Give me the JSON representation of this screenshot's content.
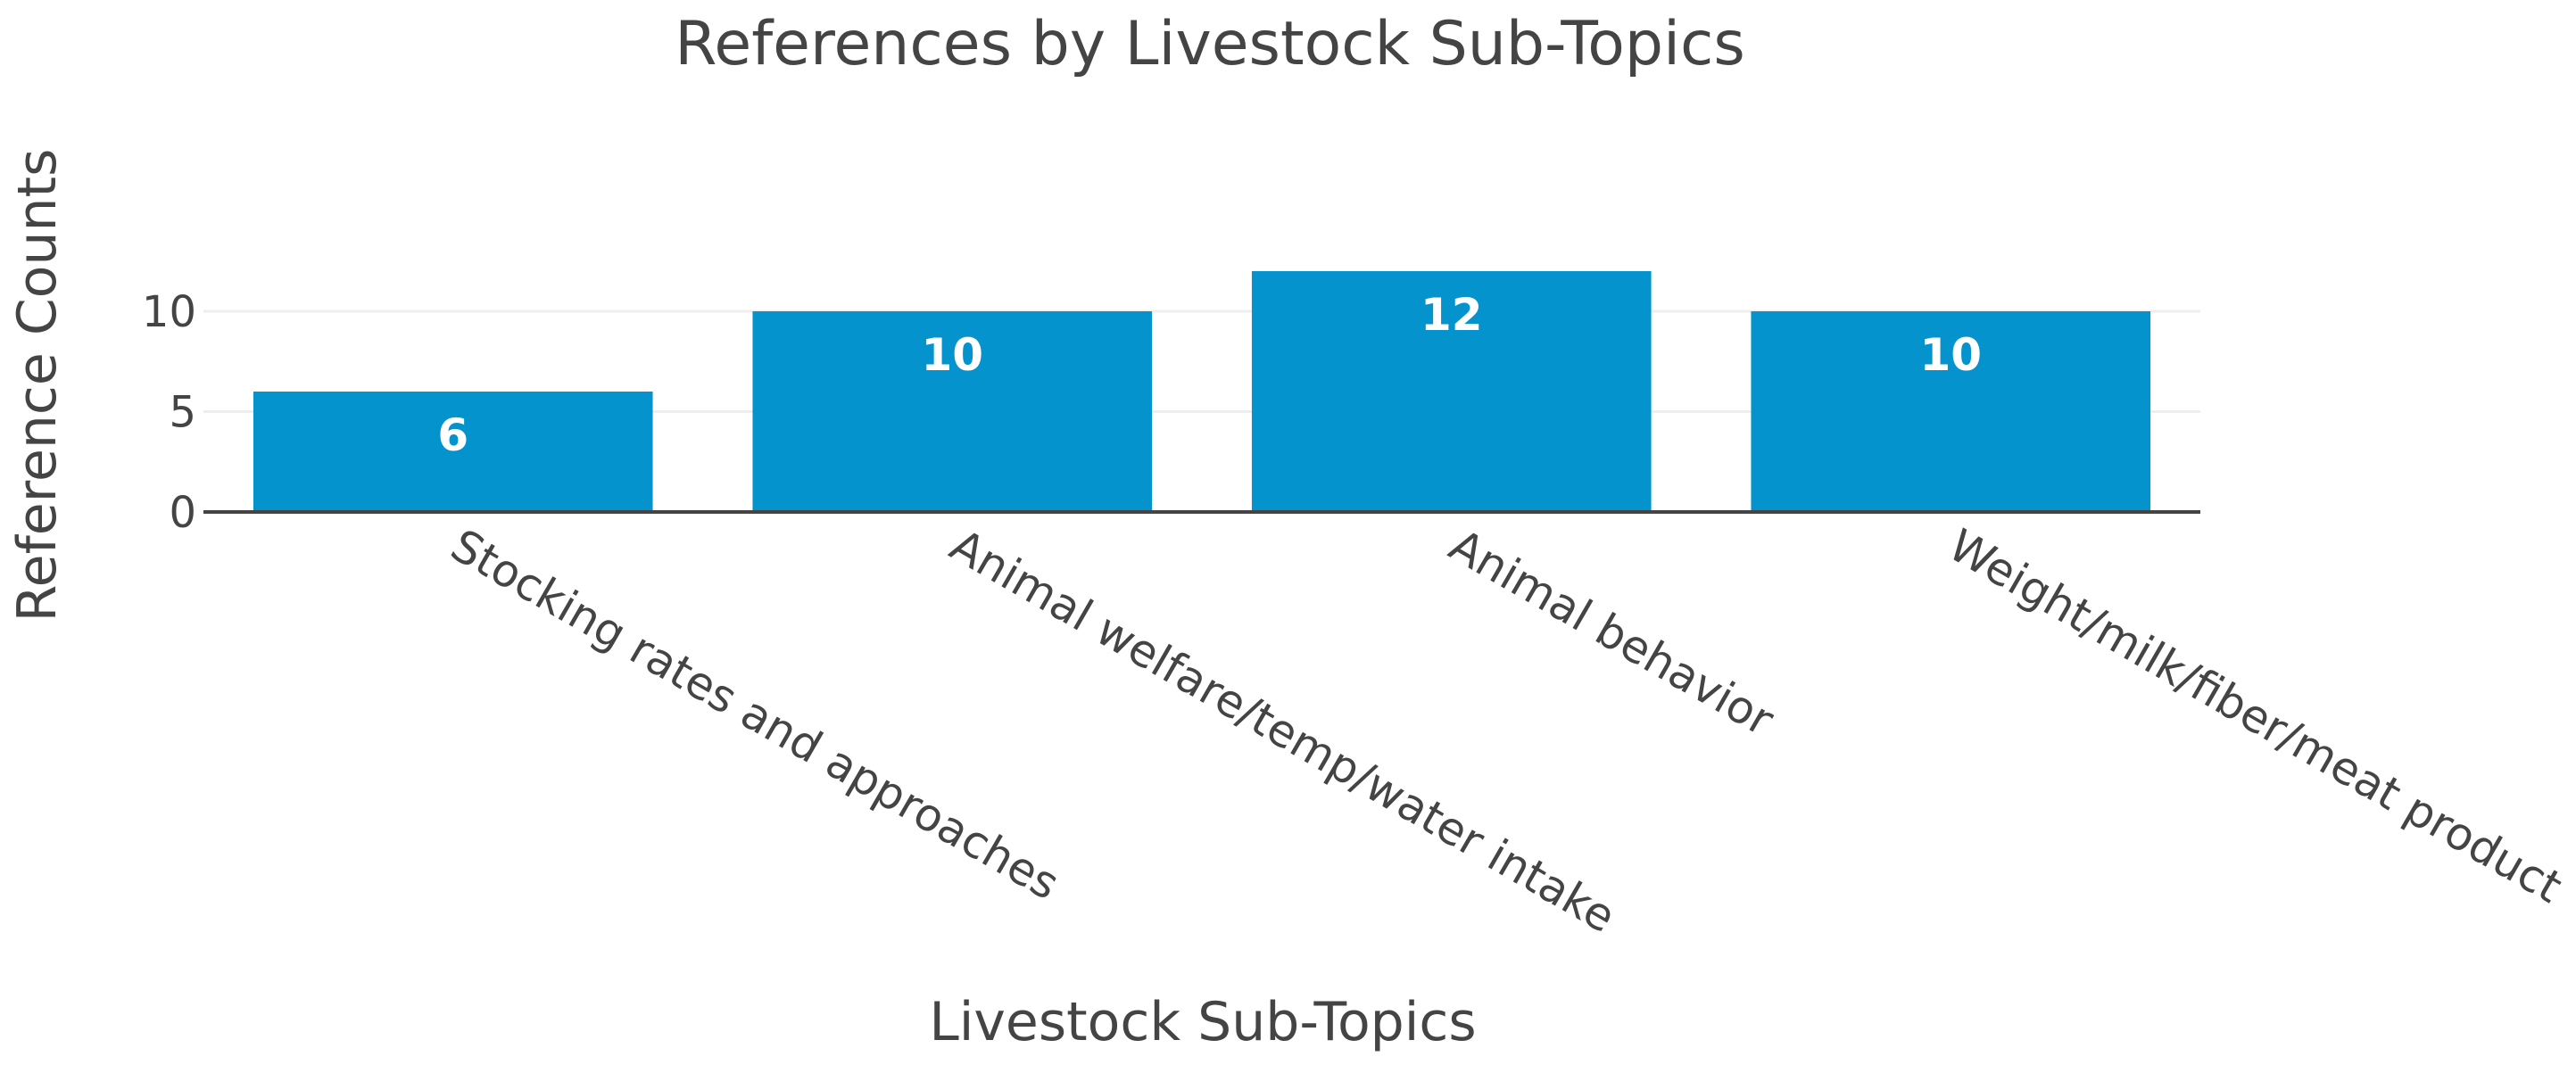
{
  "chart_data": {
    "type": "bar",
    "title": "References by Livestock Sub-Topics",
    "xlabel": "Livestock Sub-Topics",
    "ylabel": "Reference Counts",
    "categories": [
      "Stocking rates and approaches",
      "Animal welfare/temp/water intake",
      "Animal behavior",
      "Weight/milk/fiber/meat product"
    ],
    "values": [
      6,
      10,
      12,
      10
    ],
    "ylim": [
      0,
      12
    ],
    "yticks": [
      0,
      5,
      10
    ],
    "grid": true,
    "bar_color": "#0493cc",
    "show_bar_labels": true
  }
}
